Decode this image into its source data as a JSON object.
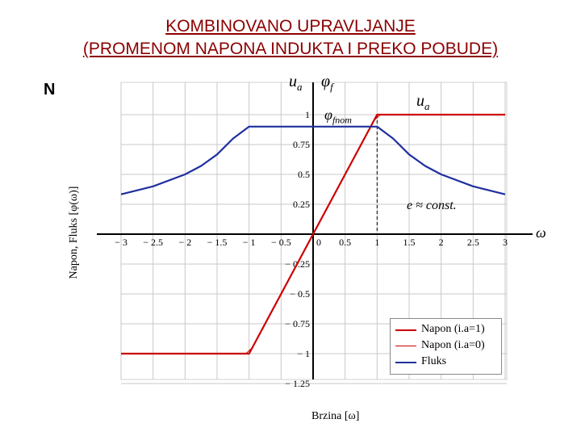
{
  "title": {
    "line1": "KOMBINOVANO UPRAVLJANJE",
    "line2": "(PROMENOM NAPONA INDUKTA I PREKO POBUDE)"
  },
  "side_label": "N",
  "annotations": {
    "ua_left": "u",
    "ua_left_sub": "a",
    "phi_f": "φ",
    "phi_f_sub": "f",
    "phi_fnom": "φ",
    "phi_fnom_sub": "fnom",
    "ua_right": "u",
    "ua_right_sub": "a",
    "e_const": "e ≈ const.",
    "omega": "ω"
  },
  "colors": {
    "napon1": "#cc0000",
    "napon0": "#cc0000",
    "fluks": "#1f2f9f",
    "grid": "#c8c8c8",
    "title": "#8b0000"
  },
  "chart_data": {
    "type": "line",
    "xlabel": "Brzina [ω]",
    "ylabel": "Napon, Fluks [φ(ω)]",
    "xlim": [
      -3.1,
      3.1
    ],
    "ylim": [
      -1.35,
      1.2
    ],
    "grid": true,
    "legend_position": "bottom-right",
    "x_ticks": [
      "− 3",
      "− 2.5",
      "− 2",
      "− 1.5",
      "− 1",
      "− 0.5",
      "0",
      "0.5",
      "1",
      "1.5",
      "2",
      "2.5",
      "3"
    ],
    "x_tick_values": [
      -3,
      -2.5,
      -2,
      -1.5,
      -1,
      -0.5,
      0,
      0.5,
      1,
      1.5,
      2,
      2.5,
      3
    ],
    "y_ticks": [
      "1",
      "0.75",
      "0.5",
      "0.25",
      "− 0.25",
      "− 0.5",
      "− 0.75",
      "− 1",
      "− 1.25"
    ],
    "y_tick_values": [
      1,
      0.75,
      0.5,
      0.25,
      -0.25,
      -0.5,
      -0.75,
      -1,
      -1.25
    ],
    "series": [
      {
        "name": "Napon (i.a=1)",
        "x": [
          -3,
          -1,
          0,
          1,
          3
        ],
        "y": [
          -1,
          -1,
          0,
          1,
          1
        ]
      },
      {
        "name": "Napon (i.a=0)",
        "x": [
          -3,
          -1.05,
          -0.95,
          0.95,
          1.05,
          3
        ],
        "y": [
          -1,
          -1,
          -0.95,
          0.95,
          1,
          1
        ]
      },
      {
        "name": "Fluks",
        "x": [
          -3,
          -2.5,
          -2,
          -1.75,
          -1.5,
          -1.25,
          -1,
          1,
          1.25,
          1.5,
          1.75,
          2,
          2.5,
          3
        ],
        "y": [
          0.333,
          0.4,
          0.5,
          0.571,
          0.667,
          0.8,
          0.9,
          0.9,
          0.8,
          0.667,
          0.571,
          0.5,
          0.4,
          0.333
        ]
      }
    ]
  }
}
